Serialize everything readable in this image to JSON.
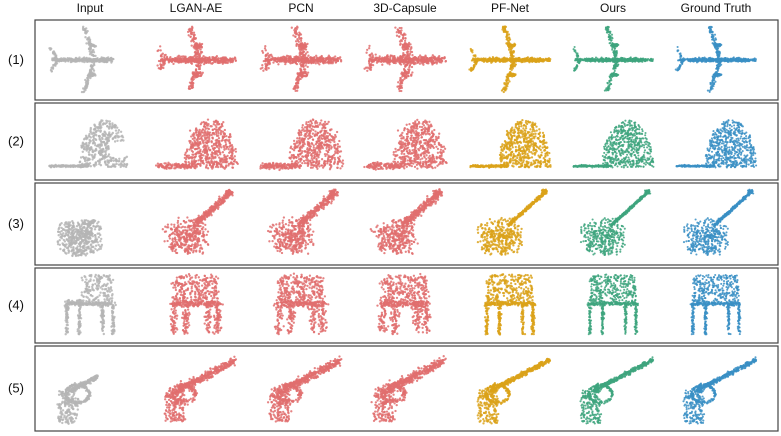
{
  "figure": {
    "columns": [
      {
        "label": "Input",
        "color": "#b5b5b5"
      },
      {
        "label": "LGAN-AE",
        "color": "#e06e6e"
      },
      {
        "label": "PCN",
        "color": "#e06e6e"
      },
      {
        "label": "3D-Capsule",
        "color": "#e06e6e"
      },
      {
        "label": "PF-Net",
        "color": "#dba21a"
      },
      {
        "label": "Ours",
        "color": "#3ea47e"
      },
      {
        "label": "Ground Truth",
        "color": "#3a8fc4"
      }
    ],
    "rows": [
      {
        "label": "(1)",
        "object": "airplane"
      },
      {
        "label": "(2)",
        "object": "cap"
      },
      {
        "label": "(3)",
        "object": "guitar"
      },
      {
        "label": "(4)",
        "object": "chair"
      },
      {
        "label": "(5)",
        "object": "pistol"
      }
    ]
  }
}
